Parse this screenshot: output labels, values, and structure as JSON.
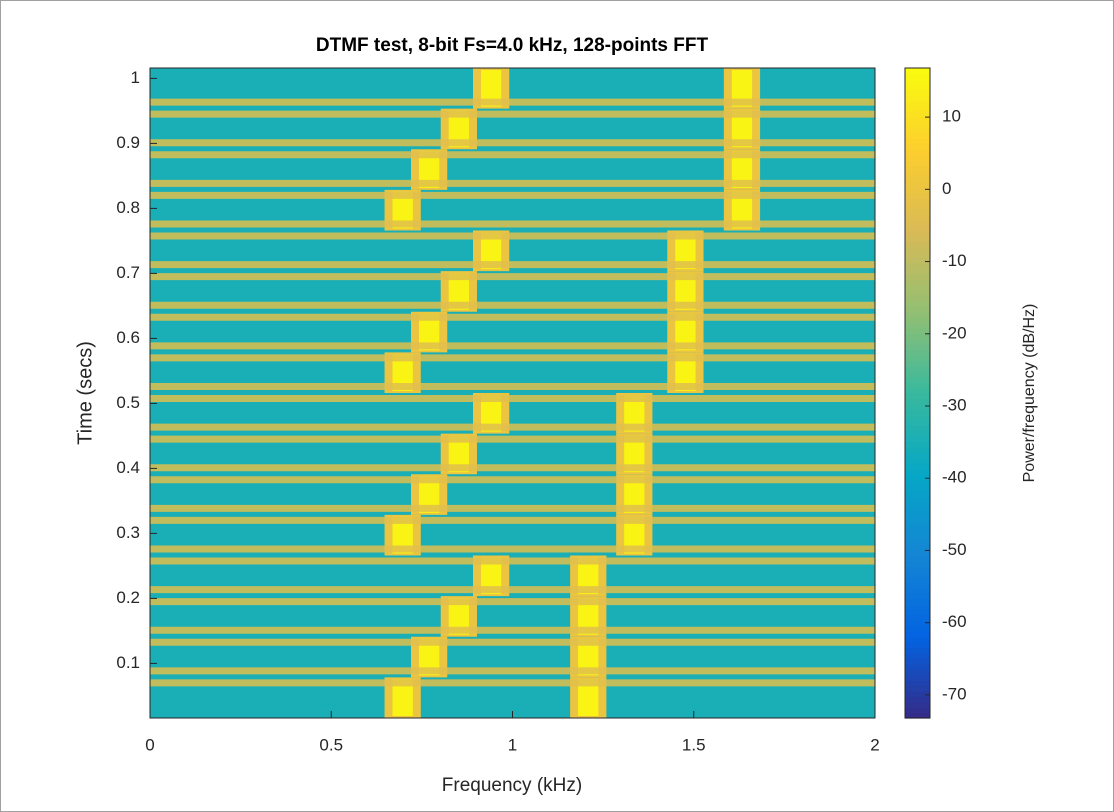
{
  "chart_data": {
    "type": "spectrogram",
    "title": "DTMF test, 8-bit Fs=4.0 kHz, 128-points FFT",
    "x_label": "Frequency (kHz)",
    "y_label": "Time (secs)",
    "colorbar_label": "Power/frequency (dB/Hz)",
    "xlim": [
      0,
      2
    ],
    "xticks": [
      0,
      0.5,
      1,
      1.5,
      2
    ],
    "ylim": [
      0.016,
      1.016
    ],
    "yticks": [
      0.1,
      0.2,
      0.3,
      0.4,
      0.5,
      0.6,
      0.7,
      0.8,
      0.9,
      1
    ],
    "clim": [
      -73.2,
      16.8
    ],
    "cticks": [
      -70,
      -60,
      -50,
      -40,
      -30,
      -20,
      -10,
      0,
      10
    ],
    "colormap": [
      "#352a87",
      "#0363e1",
      "#1485d4",
      "#06a7c6",
      "#38b99e",
      "#92bf73",
      "#d9ba56",
      "#fcce2e",
      "#f9fb0e"
    ],
    "levels": {
      "noise": -35,
      "edge": -3,
      "halo": 0,
      "tone": 15
    },
    "tones": [
      {
        "start": 0.016,
        "end": 0.0785,
        "low": 0.697,
        "high": 1.209
      },
      {
        "start": 0.0785,
        "end": 0.141,
        "low": 0.77,
        "high": 1.209
      },
      {
        "start": 0.141,
        "end": 0.2035,
        "low": 0.852,
        "high": 1.209
      },
      {
        "start": 0.2035,
        "end": 0.266,
        "low": 0.941,
        "high": 1.209
      },
      {
        "start": 0.266,
        "end": 0.3285,
        "low": 0.697,
        "high": 1.336
      },
      {
        "start": 0.3285,
        "end": 0.391,
        "low": 0.77,
        "high": 1.336
      },
      {
        "start": 0.391,
        "end": 0.4535,
        "low": 0.852,
        "high": 1.336
      },
      {
        "start": 0.4535,
        "end": 0.516,
        "low": 0.941,
        "high": 1.336
      },
      {
        "start": 0.516,
        "end": 0.5785,
        "low": 0.697,
        "high": 1.477
      },
      {
        "start": 0.5785,
        "end": 0.641,
        "low": 0.77,
        "high": 1.477
      },
      {
        "start": 0.641,
        "end": 0.7035,
        "low": 0.852,
        "high": 1.477
      },
      {
        "start": 0.7035,
        "end": 0.766,
        "low": 0.941,
        "high": 1.477
      },
      {
        "start": 0.766,
        "end": 0.8285,
        "low": 0.697,
        "high": 1.633
      },
      {
        "start": 0.8285,
        "end": 0.891,
        "low": 0.77,
        "high": 1.633
      },
      {
        "start": 0.891,
        "end": 0.9535,
        "low": 0.852,
        "high": 1.633
      },
      {
        "start": 0.9535,
        "end": 1.016,
        "low": 0.941,
        "high": 1.633
      }
    ]
  }
}
